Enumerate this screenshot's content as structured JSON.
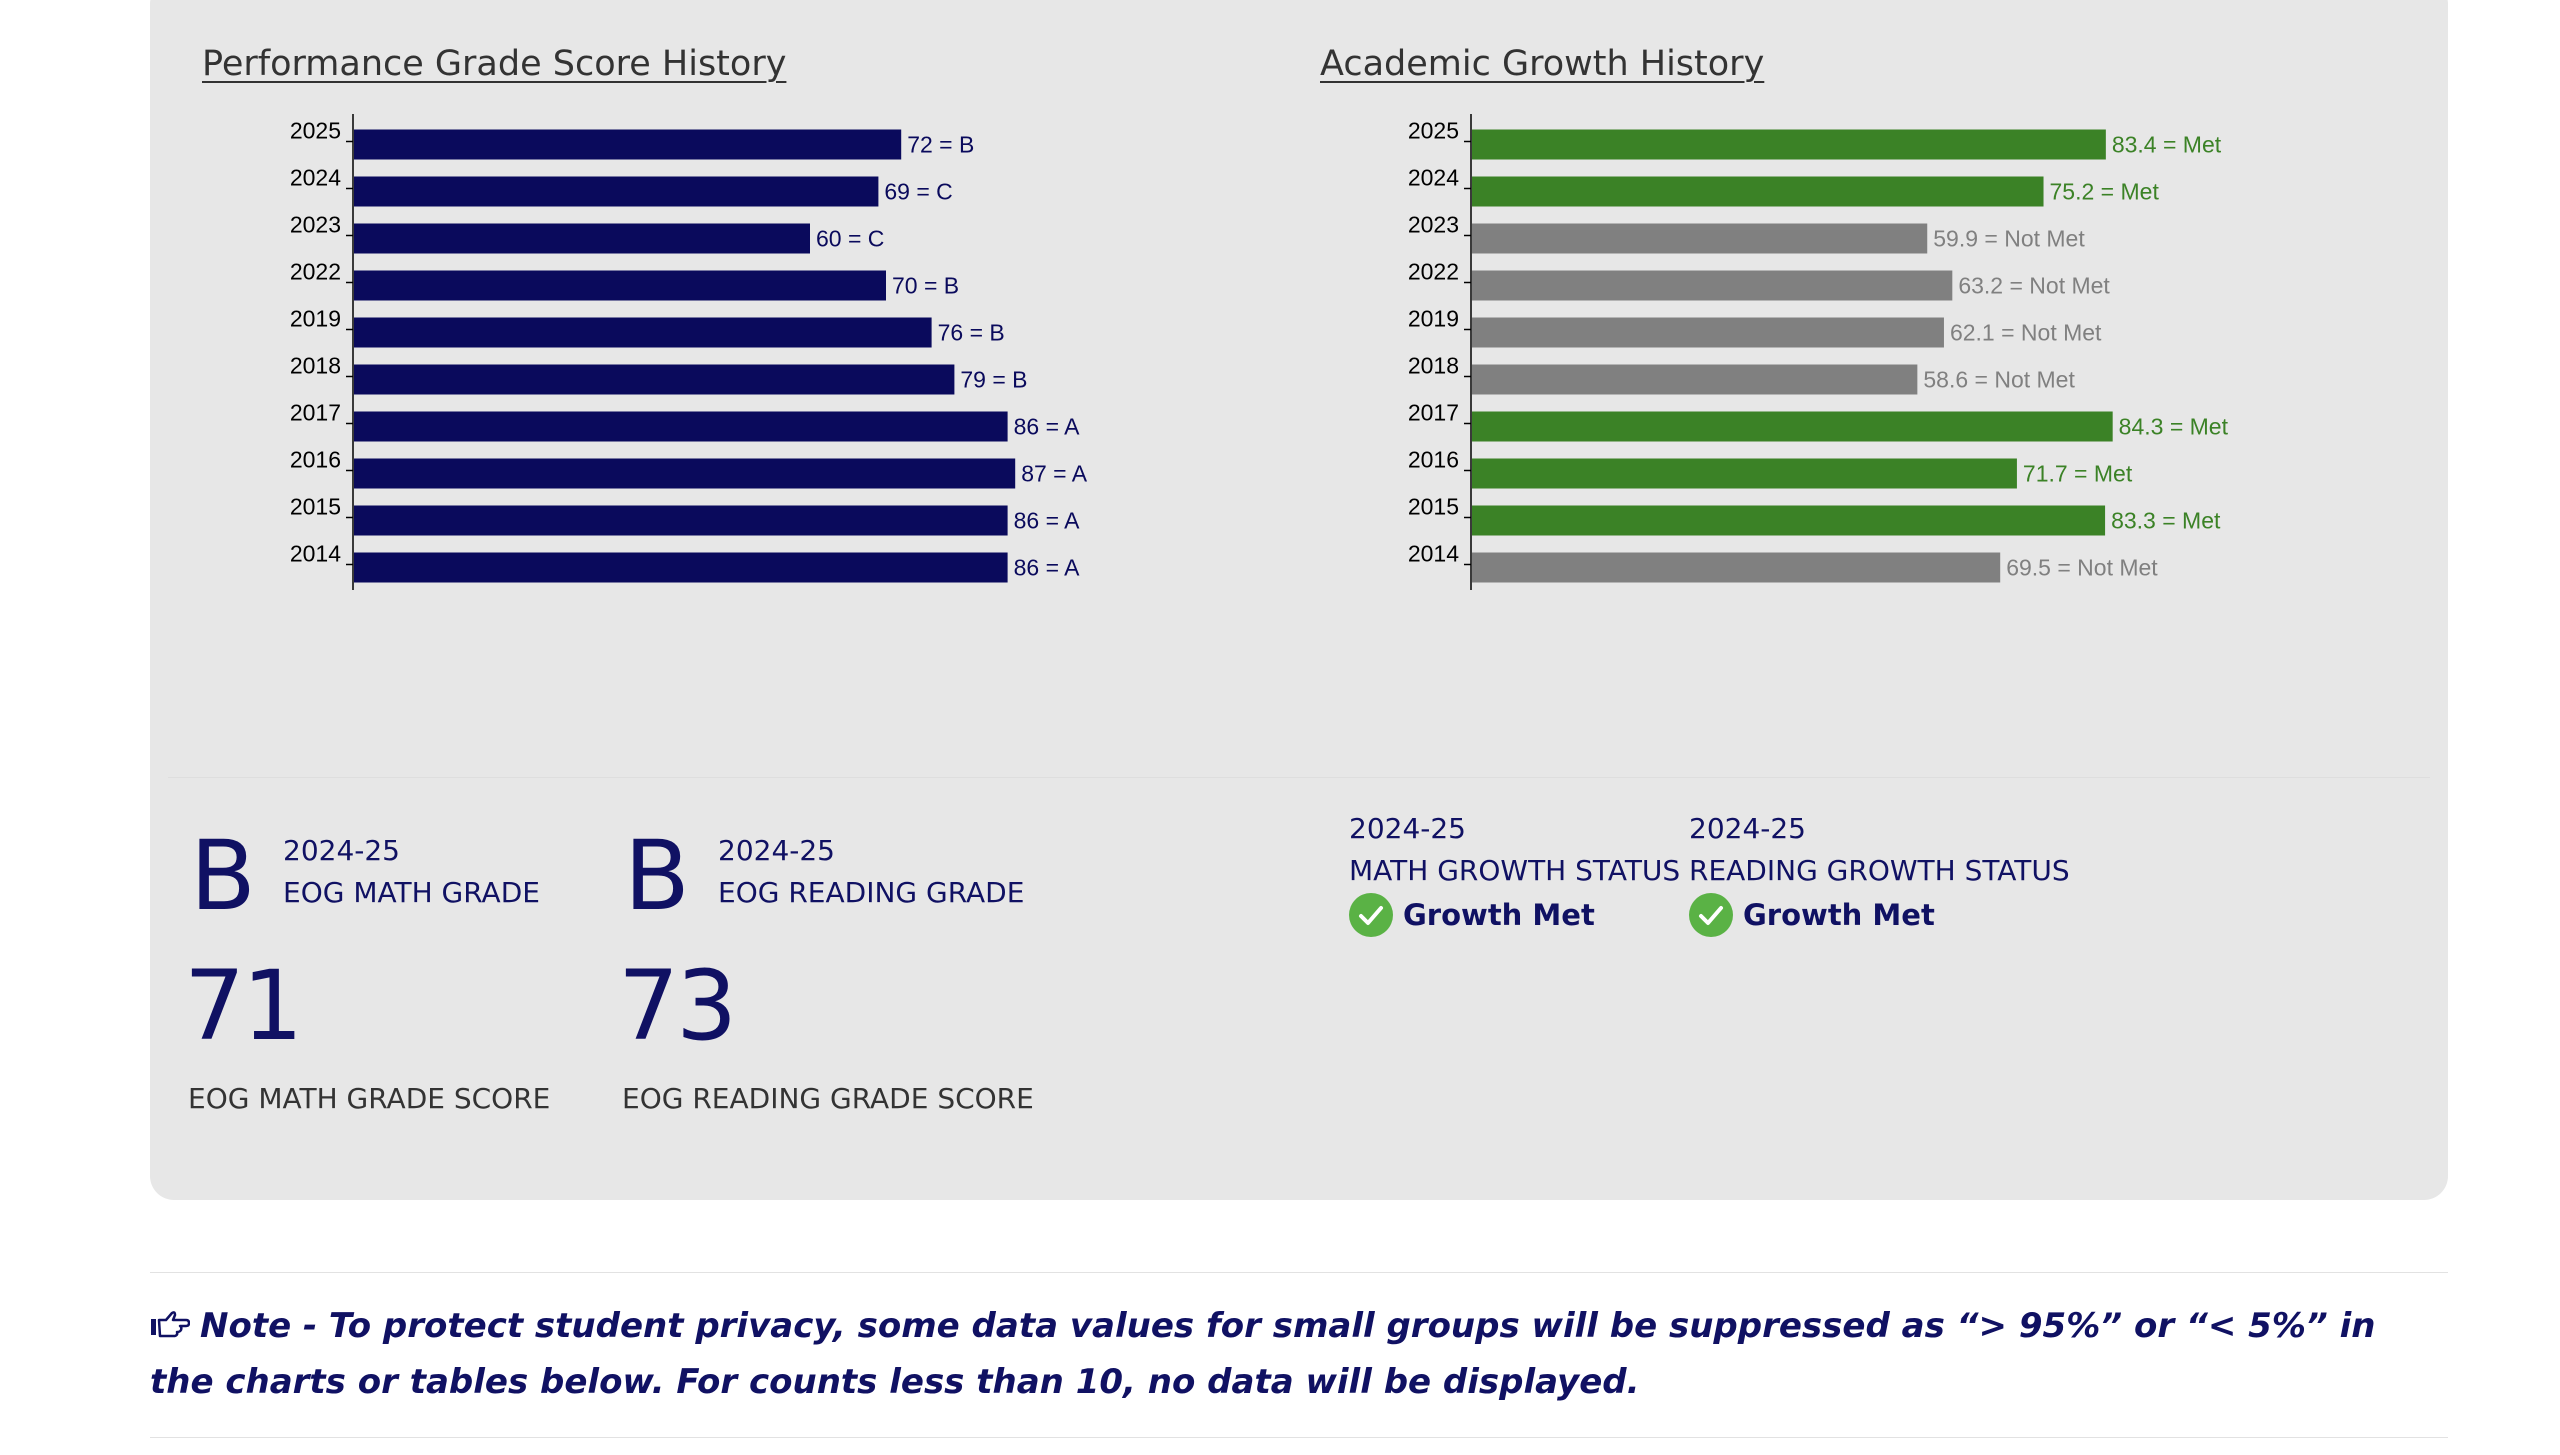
{
  "colors": {
    "navy": "#101163",
    "met": "#3b8226",
    "not_met": "#808080",
    "check": "#5ab245"
  },
  "chart_data": [
    {
      "type": "bar",
      "orientation": "horizontal",
      "title": "Performance Grade Score History",
      "categories": [
        "2025",
        "2024",
        "2023",
        "2022",
        "2019",
        "2018",
        "2017",
        "2016",
        "2015",
        "2014"
      ],
      "values": [
        72,
        69,
        60,
        70,
        76,
        79,
        86,
        87,
        86,
        86
      ],
      "data_labels": [
        "72 = B",
        "69 = C",
        "60 = C",
        "70 = B",
        "76 = B",
        "79 = B",
        "86 = A",
        "87 = A",
        "86 = A",
        "86 = A"
      ],
      "bar_colors": [
        "#0a0a5c",
        "#0a0a5c",
        "#0a0a5c",
        "#0a0a5c",
        "#0a0a5c",
        "#0a0a5c",
        "#0a0a5c",
        "#0a0a5c",
        "#0a0a5c",
        "#0a0a5c"
      ],
      "label_colors": [
        "#0a0a5c",
        "#0a0a5c",
        "#0a0a5c",
        "#0a0a5c",
        "#0a0a5c",
        "#0a0a5c",
        "#0a0a5c",
        "#0a0a5c",
        "#0a0a5c",
        "#0a0a5c"
      ],
      "xlim": [
        0,
        100
      ],
      "grid": false,
      "legend": "none"
    },
    {
      "type": "bar",
      "orientation": "horizontal",
      "title": "Academic Growth History",
      "categories": [
        "2025",
        "2024",
        "2023",
        "2022",
        "2019",
        "2018",
        "2017",
        "2016",
        "2015",
        "2014"
      ],
      "values": [
        83.4,
        75.2,
        59.9,
        63.2,
        62.1,
        58.6,
        84.3,
        71.7,
        83.3,
        69.5
      ],
      "data_labels": [
        "83.4 = Met",
        "75.2 = Met",
        "59.9 = Not Met",
        "63.2 = Not Met",
        "62.1 = Not Met",
        "58.6 = Not Met",
        "84.3 = Met",
        "71.7 = Met",
        "83.3 = Met",
        "69.5 = Not Met"
      ],
      "bar_colors": [
        "#3b8226",
        "#3b8226",
        "#808080",
        "#808080",
        "#808080",
        "#808080",
        "#3b8226",
        "#3b8226",
        "#3b8226",
        "#808080"
      ],
      "label_colors": [
        "#3b8226",
        "#3b8226",
        "#808080",
        "#808080",
        "#808080",
        "#808080",
        "#3b8226",
        "#3b8226",
        "#3b8226",
        "#808080"
      ],
      "xlim": [
        0,
        100
      ],
      "grid": false,
      "legend": "none"
    }
  ],
  "math_grade": {
    "letter": "B",
    "year": "2024-25",
    "label": "EOG MATH GRADE",
    "score": "71",
    "score_label": "EOG MATH GRADE SCORE"
  },
  "reading_grade": {
    "letter": "B",
    "year": "2024-25",
    "label": "EOG READING GRADE",
    "score": "73",
    "score_label": "EOG READING GRADE SCORE"
  },
  "math_growth": {
    "year": "2024-25",
    "label": "MATH GROWTH STATUS",
    "status": "Growth Met",
    "icon": "check-circle-icon"
  },
  "reading_growth": {
    "year": "2024-25",
    "label": "READING GROWTH STATUS",
    "status": "Growth Met",
    "icon": "check-circle-icon"
  },
  "note": {
    "icon": "pointing-hand-icon",
    "text": "Note - To protect student privacy, some data values for small groups will be suppressed as “> 95%” or “< 5%” in the charts or tables below. For counts less than 10, no data will be displayed."
  }
}
